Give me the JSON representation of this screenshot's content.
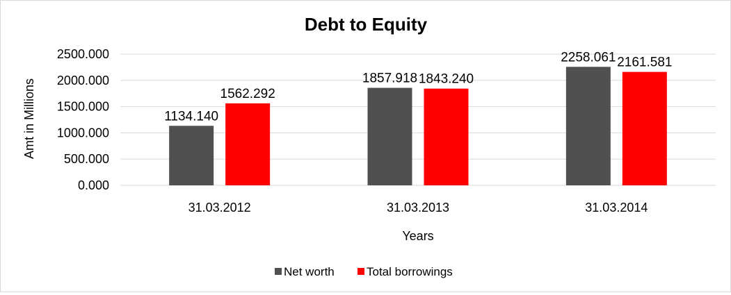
{
  "chart_data": {
    "type": "bar",
    "title": "Debt to Equity",
    "xlabel": "Years",
    "ylabel": "Amt in Millions",
    "categories": [
      "31.03.2012",
      "31.03.2013",
      "31.03.2014"
    ],
    "series": [
      {
        "name": "Net worth",
        "color": "#505050",
        "values": [
          1134.14,
          1857.918,
          2258.061
        ],
        "labels": [
          "1134.140",
          "1857.918",
          "2258.061"
        ]
      },
      {
        "name": "Total borrowings",
        "color": "#ff0000",
        "values": [
          1562.292,
          1843.24,
          2161.581
        ],
        "labels": [
          "1562.292",
          "1843.240",
          "2161.581"
        ]
      }
    ],
    "ylim": [
      0,
      2500
    ],
    "yticks": [
      "0.000",
      "500.000",
      "1000.000",
      "1500.000",
      "2000.000",
      "2500.000"
    ],
    "grid": true,
    "legend": "bottom"
  }
}
